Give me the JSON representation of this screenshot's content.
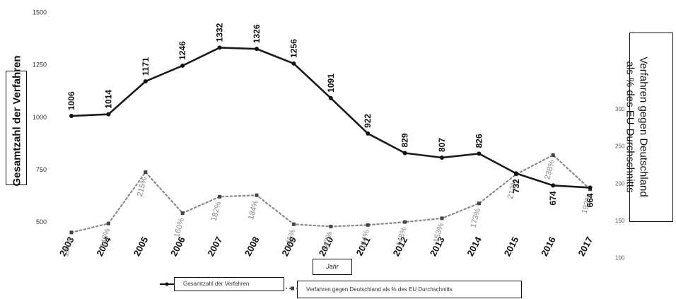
{
  "chart_data": {
    "type": "line",
    "categories": [
      "2003",
      "2004",
      "2005",
      "2006",
      "2007",
      "2008",
      "2009",
      "2010",
      "2011",
      "2012",
      "2013",
      "2014",
      "2015",
      "2016",
      "2017"
    ],
    "series": [
      {
        "name": "Gesamtzahl der Verfahren",
        "axis": "left",
        "style": "solid",
        "values": [
          1006,
          1014,
          1171,
          1246,
          1332,
          1326,
          1256,
          1091,
          922,
          829,
          807,
          826,
          732,
          674,
          664
        ],
        "labels": [
          "1006",
          "1014",
          "1171",
          "1246",
          "1332",
          "1326",
          "1256",
          "1091",
          "922",
          "829",
          "807",
          "826",
          "732",
          "674",
          "664"
        ],
        "color": "#1a1a1a"
      },
      {
        "name": "Verfahren gegen Deutschland als % des EU-Durchschnitts",
        "axis": "right",
        "style": "dotted",
        "values": [
          134,
          146,
          215,
          160,
          182,
          184,
          145,
          142,
          144,
          148,
          153,
          173,
          212,
          238,
          192
        ],
        "labels": [
          "134%",
          "146%",
          "215%",
          "160%",
          "182%",
          "184%",
          "145%",
          "142%",
          "144%",
          "148%",
          "153%",
          "173%",
          "212%",
          "238%",
          "192%"
        ],
        "color": "#8a8a8a"
      }
    ],
    "left_axis": {
      "ylim": [
        480,
        1575
      ],
      "ticks": [
        "500",
        "750",
        "1000",
        "1250",
        "1500"
      ],
      "tick_values": [
        500,
        750,
        1000,
        1250,
        1500
      ]
    },
    "right_axis": {
      "ylim": [
        95,
        330
      ],
      "ticks": [
        "100",
        "150",
        "200",
        "250",
        "300"
      ],
      "tick_values": [
        100,
        150,
        200,
        250,
        300
      ]
    },
    "ylabel_left": "Gesamtzahl der Verfahren",
    "ylabel_right_lines": [
      "Verfahren gegen Deutschland",
      "als % des EU-Durchschnitts"
    ],
    "xlabel": "Jahr",
    "legend": [
      {
        "label": "Gesamtzahl der Verfahren",
        "style": "solid"
      },
      {
        "label": "Verfahren gegen Deutschland als % des EU Durchschnitts",
        "style": "dotted"
      }
    ],
    "legend_placement": "bottom",
    "grid": false
  }
}
